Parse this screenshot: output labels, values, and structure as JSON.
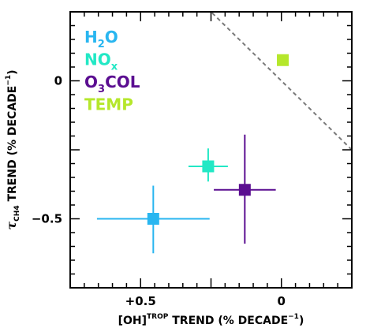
{
  "chart_data": {
    "type": "scatter",
    "xlabel": "[OH]",
    "xlabel_sup": "TROP",
    "xlabel_rest": " TREND (% DECADE",
    "ylabel_greek": "τ",
    "ylabel_sub": "CH4",
    "ylabel_rest": " TREND (% DECADE",
    "unit_exp": "−1",
    "xlim": [
      0.75,
      -0.25
    ],
    "ylim": [
      -0.75,
      0.25
    ],
    "x_reversed": true,
    "grid": false,
    "x_ticks": [
      {
        "value": 0.5,
        "label": "+0.5"
      },
      {
        "value": 0,
        "label": "0"
      }
    ],
    "y_ticks": [
      {
        "value": 0,
        "label": "0"
      },
      {
        "value": -0.5,
        "label": "−0.5"
      }
    ],
    "one_to_one_line": true,
    "legend_position": "top-left",
    "series": [
      {
        "name": "H2O",
        "label_main": "H",
        "label_sub": "2",
        "label_tail": "O",
        "color": "#29b6f0",
        "x": 0.455,
        "y": -0.5,
        "x_err": [
          0.2,
          0.2
        ],
        "y_err": [
          0.125,
          0.12
        ]
      },
      {
        "name": "NOx",
        "label_main": "NO",
        "label_sub": "x",
        "label_tail": "",
        "color": "#22e8c5",
        "x": 0.26,
        "y": -0.31,
        "x_err": [
          0.07,
          0.07
        ],
        "y_err": [
          0.055,
          0.065
        ]
      },
      {
        "name": "O3COL",
        "label_main": "O",
        "label_sub": "3",
        "label_tail": "COL",
        "color": "#5b0e91",
        "x": 0.13,
        "y": -0.395,
        "x_err": [
          0.11,
          0.11
        ],
        "y_err": [
          0.195,
          0.2
        ]
      },
      {
        "name": "TEMP",
        "label_main": "TEMP",
        "label_sub": "",
        "label_tail": "",
        "color": "#b5e72b",
        "x": -0.005,
        "y": 0.075,
        "x_err": [
          0,
          0
        ],
        "y_err": [
          0,
          0
        ]
      }
    ]
  }
}
